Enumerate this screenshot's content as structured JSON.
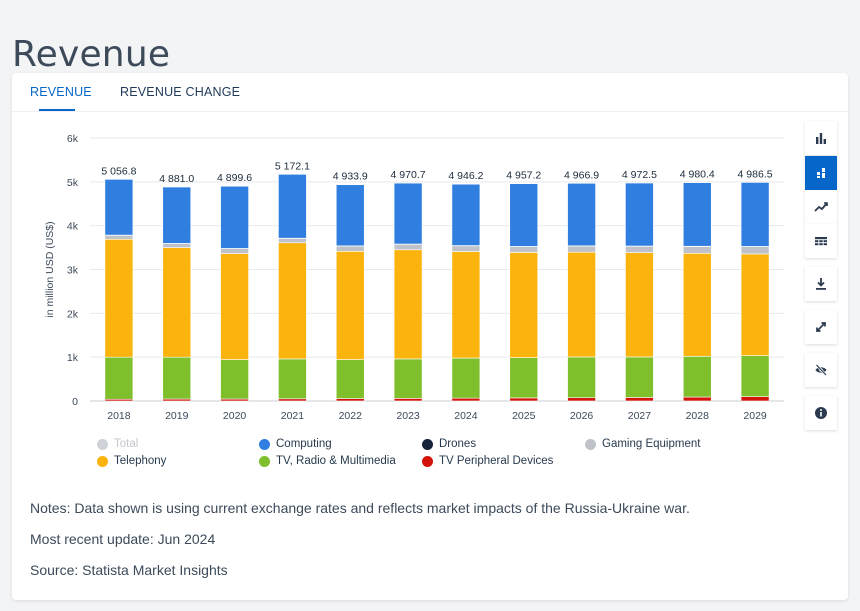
{
  "page": {
    "title": "Revenue"
  },
  "tabs": [
    {
      "label": "REVENUE",
      "active": true
    },
    {
      "label": "REVENUE CHANGE",
      "active": false
    }
  ],
  "toolbar": [
    {
      "icon": "bar-chart-icon",
      "active": false
    },
    {
      "icon": "stacked-bar-icon",
      "active": true
    },
    {
      "icon": "trend-line-icon",
      "active": false
    },
    {
      "icon": "table-icon",
      "active": false
    },
    {
      "icon": "download-icon",
      "active": false
    },
    {
      "icon": "expand-icon",
      "active": false
    },
    {
      "icon": "hide-icon",
      "active": false
    },
    {
      "icon": "info-icon",
      "active": false
    }
  ],
  "colors": {
    "accent": "#0666c9",
    "computing": "#2f7ee0",
    "drones": "#16233a",
    "gaming": "#bfc3c9",
    "telephony": "#fbb40e",
    "tv": "#7fbf2c",
    "peripheral": "#d3140a",
    "total": "#cfd2d6"
  },
  "chart_data": {
    "type": "bar",
    "stacked": true,
    "ylabel": "in million USD (US$)",
    "ylim": [
      0,
      6000
    ],
    "yticks": [
      0,
      1000,
      2000,
      3000,
      4000,
      5000,
      6000
    ],
    "ytick_labels": [
      "0",
      "1k",
      "2k",
      "3k",
      "4k",
      "5k",
      "6k"
    ],
    "categories": [
      "2018",
      "2019",
      "2020",
      "2021",
      "2022",
      "2023",
      "2024",
      "2025",
      "2026",
      "2027",
      "2028",
      "2029"
    ],
    "totals": [
      5056.8,
      4881.0,
      4899.6,
      5172.1,
      4933.9,
      4970.7,
      4946.2,
      4957.2,
      4966.9,
      4972.5,
      4980.4,
      4986.5
    ],
    "total_labels": [
      "5 056.8",
      "4 881.0",
      "4 899.6",
      "5 172.1",
      "4 933.9",
      "4 970.7",
      "4 946.2",
      "4 957.2",
      "4 966.9",
      "4 972.5",
      "4 980.4",
      "4 986.5"
    ],
    "series": [
      {
        "name": "TV Peripheral Devices",
        "color": "#d3140a",
        "values": [
          40,
          45,
          45,
          50,
          55,
          60,
          65,
          70,
          75,
          80,
          90,
          100
        ]
      },
      {
        "name": "TV, Radio & Multimedia",
        "color": "#7fbf2c",
        "values": [
          960,
          955,
          900,
          910,
          890,
          900,
          915,
          920,
          930,
          925,
          930,
          935
        ]
      },
      {
        "name": "Telephony",
        "color": "#fbb40e",
        "values": [
          2690,
          2500,
          2420,
          2650,
          2470,
          2490,
          2430,
          2400,
          2390,
          2380,
          2350,
          2320
        ]
      },
      {
        "name": "Gaming Equipment",
        "color": "#bfc3c9",
        "values": [
          90,
          90,
          110,
          100,
          120,
          125,
          130,
          130,
          140,
          145,
          155,
          165
        ]
      },
      {
        "name": "Drones",
        "color": "#16233a",
        "values": [
          5,
          5,
          5,
          5,
          5,
          6,
          6,
          6,
          6,
          6,
          6,
          6
        ]
      },
      {
        "name": "Computing",
        "color": "#2f7ee0",
        "values": [
          1271.8,
          1286.0,
          1419.6,
          1457.1,
          1393.9,
          1389.7,
          1400.2,
          1431.2,
          1425.9,
          1436.5,
          1449.4,
          1460.5
        ]
      }
    ],
    "legend": [
      {
        "name": "Total",
        "color": "#cfd2d6",
        "disabled": true
      },
      {
        "name": "Computing",
        "color": "#2f7ee0"
      },
      {
        "name": "Drones",
        "color": "#16233a"
      },
      {
        "name": "Gaming Equipment",
        "color": "#bfc3c9"
      },
      {
        "name": "Telephony",
        "color": "#fbb40e"
      },
      {
        "name": "TV, Radio & Multimedia",
        "color": "#7fbf2c"
      },
      {
        "name": "TV Peripheral Devices",
        "color": "#d3140a"
      }
    ],
    "legend_position": "bottom",
    "grid": true
  },
  "notes": {
    "note": "Notes: Data shown is using current exchange rates and reflects market impacts of the Russia-Ukraine war.",
    "update": "Most recent update: Jun 2024",
    "source": "Source: Statista Market Insights"
  }
}
